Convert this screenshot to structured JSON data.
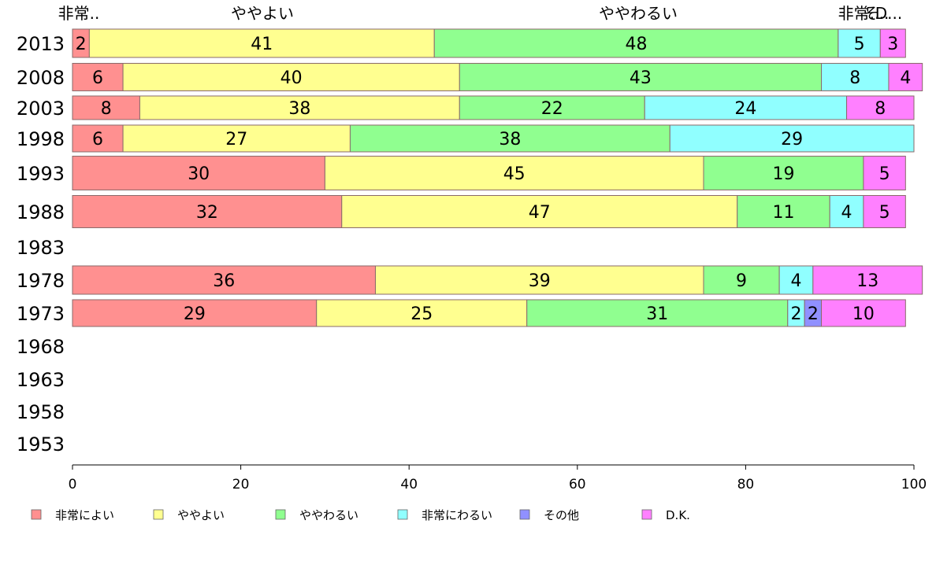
{
  "chart_data": {
    "type": "bar",
    "orientation": "horizontal",
    "stacked": true,
    "categories": [
      "2013",
      "2008",
      "2003",
      "1998",
      "1993",
      "1988",
      "1983",
      "1978",
      "1973",
      "1968",
      "1963",
      "1958",
      "1953"
    ],
    "series": [
      {
        "name": "非常によい",
        "color": "#ff9090",
        "values": [
          2,
          6,
          8,
          6,
          30,
          32,
          null,
          36,
          29,
          null,
          null,
          null,
          null
        ]
      },
      {
        "name": "ややよい",
        "color": "#ffff90",
        "values": [
          41,
          40,
          38,
          27,
          45,
          47,
          null,
          39,
          25,
          null,
          null,
          null,
          null
        ]
      },
      {
        "name": "ややわるい",
        "color": "#90ff90",
        "values": [
          48,
          43,
          22,
          38,
          19,
          11,
          null,
          9,
          31,
          null,
          null,
          null,
          null
        ]
      },
      {
        "name": "非常にわるい",
        "color": "#90ffff",
        "values": [
          5,
          8,
          24,
          29,
          0,
          4,
          null,
          4,
          2,
          null,
          null,
          null,
          null
        ]
      },
      {
        "name": "その他",
        "color": "#9090ff",
        "values": [
          0,
          0,
          0,
          0,
          0,
          0,
          null,
          0,
          2,
          null,
          null,
          null,
          null
        ]
      },
      {
        "name": "D.K.",
        "color": "#ff80ff",
        "values": [
          3,
          4,
          8,
          0,
          5,
          5,
          null,
          13,
          10,
          null,
          null,
          null,
          null
        ]
      }
    ],
    "top_labels": [
      "非常..",
      "ややよい",
      "ややわるい",
      "非常..",
      "そ..",
      "D..."
    ],
    "xlim": [
      0,
      100
    ],
    "xticks": [
      "0",
      "20",
      "40",
      "60",
      "80",
      "100"
    ],
    "grid": false,
    "legend_position": "bottom"
  }
}
